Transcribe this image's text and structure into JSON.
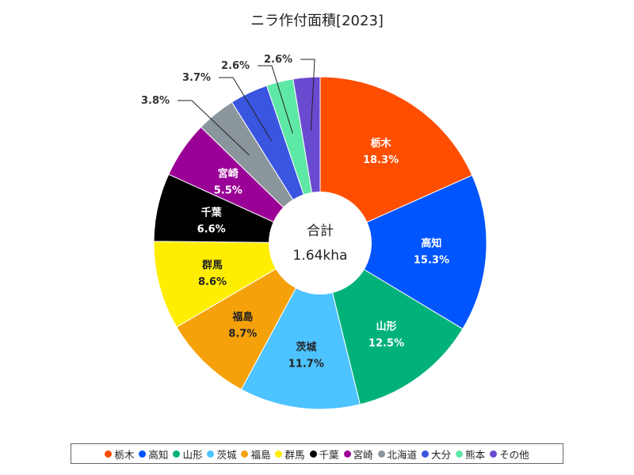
{
  "chart_data": {
    "type": "pie",
    "title": "ニラ作付面積[2023]",
    "center_label": "合計",
    "center_value": "1.64kha",
    "slices": [
      {
        "name": "栃木",
        "percent": 18.3,
        "label": "18.3%",
        "color": "#ff4e00"
      },
      {
        "name": "高知",
        "percent": 15.3,
        "label": "15.3%",
        "color": "#0055ff"
      },
      {
        "name": "山形",
        "percent": 12.5,
        "label": "12.5%",
        "color": "#00b27a"
      },
      {
        "name": "茨城",
        "percent": 11.7,
        "label": "11.7%",
        "color": "#4dc3ff"
      },
      {
        "name": "福島",
        "percent": 8.7,
        "label": "8.7%",
        "color": "#f5a10a"
      },
      {
        "name": "群馬",
        "percent": 8.6,
        "label": "8.6%",
        "color": "#ffee00"
      },
      {
        "name": "千葉",
        "percent": 6.6,
        "label": "6.6%",
        "color": "#000000"
      },
      {
        "name": "宮崎",
        "percent": 5.5,
        "label": "5.5%",
        "color": "#9b0096"
      },
      {
        "name": "北海道",
        "percent": 3.8,
        "label": "3.8%",
        "color": "#8a959c"
      },
      {
        "name": "大分",
        "percent": 3.7,
        "label": "3.7%",
        "color": "#3a55e0"
      },
      {
        "name": "熊本",
        "percent": 2.6,
        "label": "2.6%",
        "color": "#5ee8a6"
      },
      {
        "name": "その他",
        "percent": 2.6,
        "label": "2.6%",
        "color": "#6a4ad0"
      }
    ]
  }
}
